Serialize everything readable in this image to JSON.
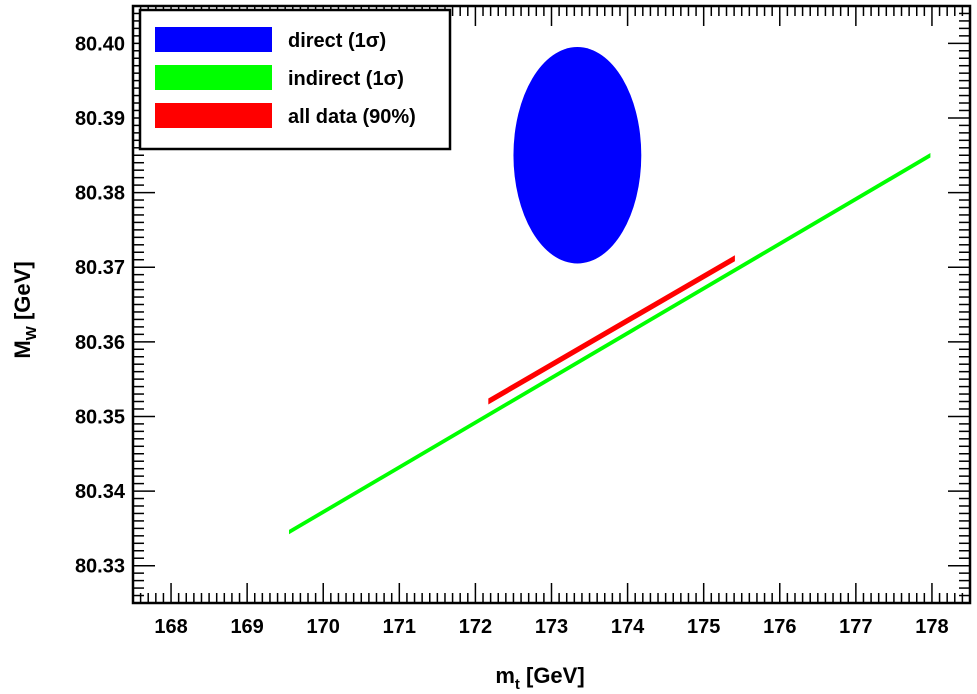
{
  "chart_data": {
    "type": "scatter",
    "xlabel_main": "m",
    "xlabel_sub": "t",
    "xlabel_unit": " [GeV]",
    "ylabel_main": "M",
    "ylabel_sub": "W",
    "ylabel_unit": " [GeV]",
    "xlim": [
      167.5,
      178.5
    ],
    "ylim": [
      80.325,
      80.405
    ],
    "x_ticks": [
      168,
      169,
      170,
      171,
      172,
      173,
      174,
      175,
      176,
      177,
      178
    ],
    "y_ticks": [
      80.33,
      80.34,
      80.35,
      80.36,
      80.37,
      80.38,
      80.39,
      80.4
    ],
    "x_tick_labels": [
      "168",
      "169",
      "170",
      "171",
      "172",
      "173",
      "174",
      "175",
      "176",
      "177",
      "178"
    ],
    "y_tick_labels": [
      "80.33",
      "80.34",
      "80.35",
      "80.36",
      "80.37",
      "80.38",
      "80.39",
      "80.40"
    ],
    "legend_position": "top-left",
    "series": [
      {
        "name": "direct (1σ)",
        "kind": "ellipse",
        "color": "#0000ff",
        "center": [
          173.34,
          80.385
        ],
        "semi_axis_x": 0.84,
        "semi_axis_y": 0.0145
      },
      {
        "name": "indirect (1σ)",
        "kind": "band",
        "color": "#00ff00",
        "x": [
          169.55,
          177.98
        ],
        "y": [
          80.3345,
          80.385
        ],
        "half_width_y": 0.0003
      },
      {
        "name": "all data (90%)",
        "kind": "band",
        "color": "#ff0000",
        "x": [
          172.17,
          175.41
        ],
        "y": [
          80.352,
          80.3712
        ],
        "half_width_y": 0.0004
      }
    ],
    "legend": [
      {
        "label": "direct (1σ)",
        "color": "#0000ff"
      },
      {
        "label": "indirect (1σ)",
        "color": "#00ff00"
      },
      {
        "label": "all data (90%)",
        "color": "#ff0000"
      }
    ]
  }
}
